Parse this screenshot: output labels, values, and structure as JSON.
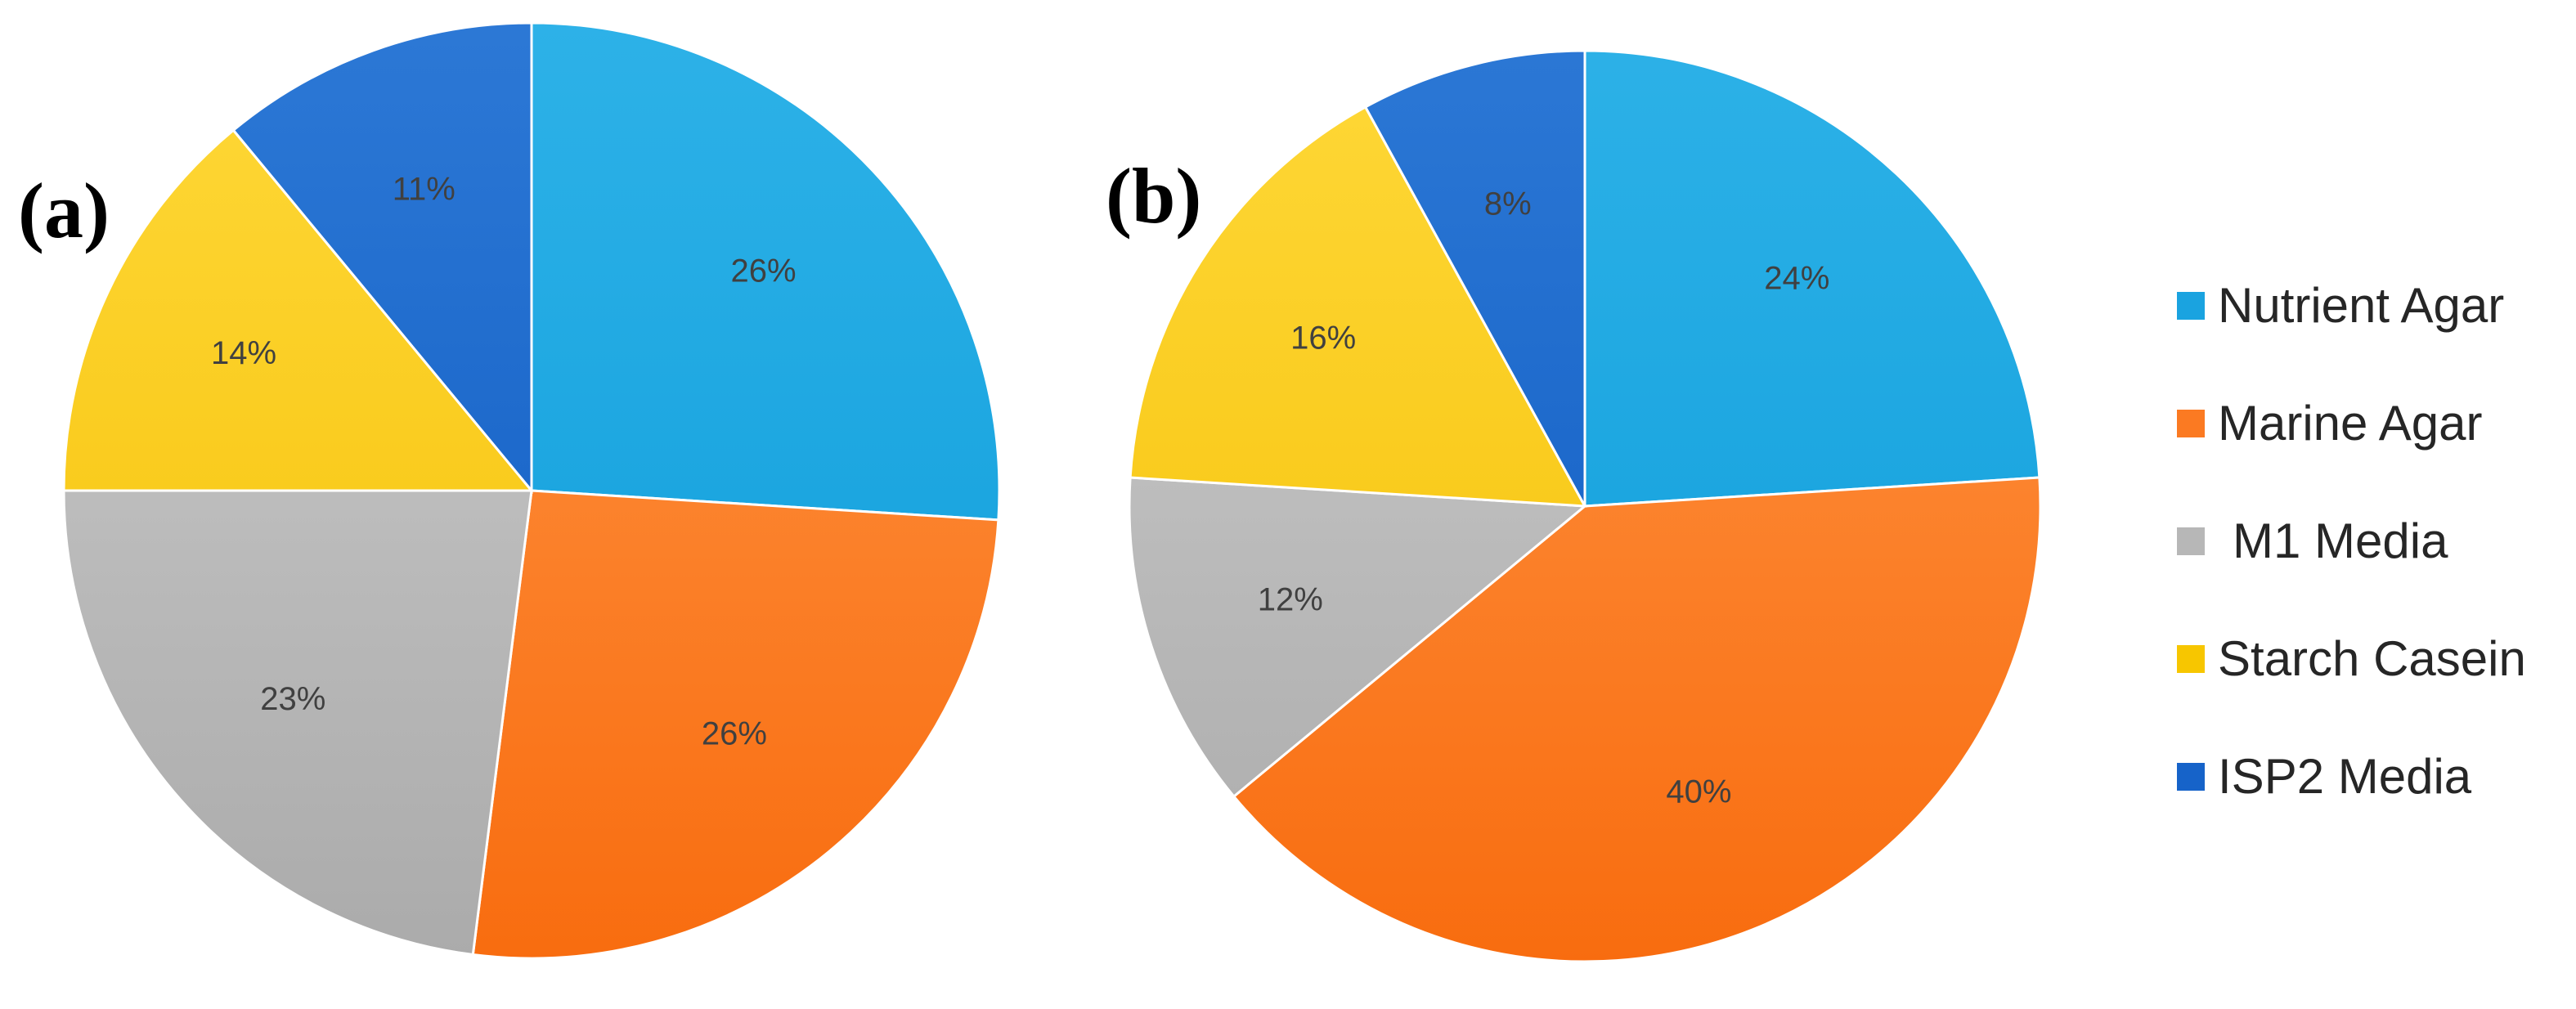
{
  "categories": [
    "Nutrient Agar",
    "Marine Agar",
    "M1 Media",
    "Starch Casein",
    "ISP2 Media"
  ],
  "colors": {
    "Nutrient Agar": [
      "#2eb2e8",
      "#0a9ad8"
    ],
    "Marine Agar": [
      "#ff9a4c",
      "#f86a0c"
    ],
    "M1 Media": [
      "#cfcfcf",
      "#a9a9a9"
    ],
    "Starch Casein": [
      "#ffd93a",
      "#f3bd00"
    ],
    "ISP2 Media": [
      "#2d79d6",
      "#0b57bf"
    ]
  },
  "legend": {
    "position": "right",
    "items": [
      {
        "label": "Nutrient Agar",
        "color": "#1aa3e0"
      },
      {
        "label": "Marine Agar",
        "color": "#fb7a22"
      },
      {
        "label": "M1 Media",
        "color": "#b7b7b7"
      },
      {
        "label": "Starch Casein",
        "color": "#f7c600"
      },
      {
        "label": "ISP2 Media",
        "color": "#1663c9"
      }
    ]
  },
  "chart_data": [
    {
      "type": "pie",
      "panel_label": "(a)",
      "labels": [
        "Nutrient Agar",
        "Marine Agar",
        "M1 Media",
        "Starch Casein",
        "ISP2 Media"
      ],
      "values": [
        26,
        26,
        23,
        14,
        11
      ],
      "value_labels": [
        "26%",
        "26%",
        "23%",
        "14%",
        "11%"
      ]
    },
    {
      "type": "pie",
      "panel_label": "(b)",
      "labels": [
        "Nutrient Agar",
        "Marine Agar",
        "M1 Media",
        "Starch Casein",
        "ISP2 Media"
      ],
      "values": [
        24,
        40,
        12,
        16,
        8
      ],
      "value_labels": [
        "24%",
        "40%",
        "12%",
        "16%",
        "8%"
      ]
    }
  ]
}
